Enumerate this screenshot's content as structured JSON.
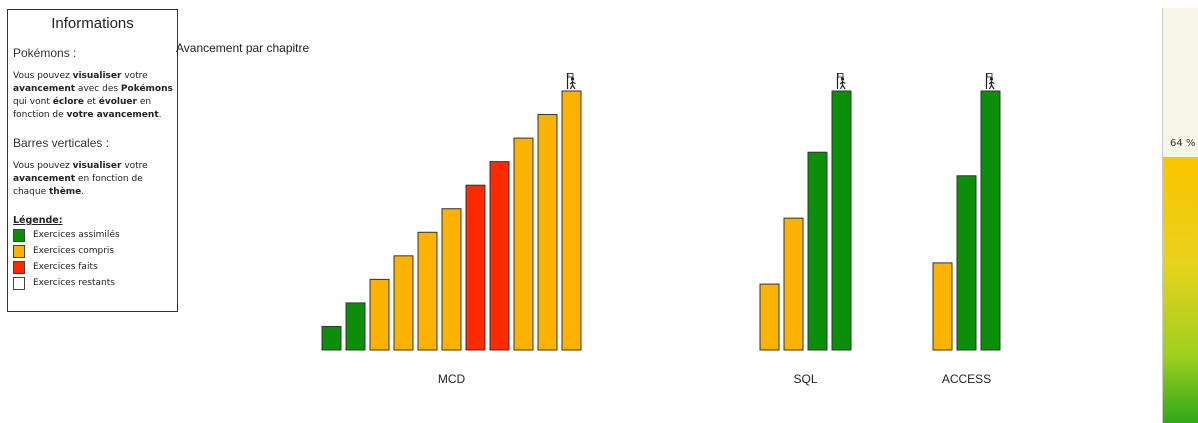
{
  "info": {
    "title": "Informations",
    "pokemon_heading": "Pokémons :",
    "pokemon_text": [
      {
        "t": "Vous pouvez ",
        "b": false
      },
      {
        "t": "visualiser",
        "b": true
      },
      {
        "t": " votre ",
        "b": false
      },
      {
        "t": "avancement",
        "b": true
      },
      {
        "t": " avec des ",
        "b": false
      },
      {
        "t": "Pokémons",
        "b": true
      },
      {
        "t": " qui vont ",
        "b": false
      },
      {
        "t": "éclore",
        "b": true
      },
      {
        "t": " et ",
        "b": false
      },
      {
        "t": "évoluer",
        "b": true
      },
      {
        "t": " en fonction de ",
        "b": false
      },
      {
        "t": "votre avancement",
        "b": true
      },
      {
        "t": ".",
        "b": false
      }
    ],
    "bars_heading": "Barres verticales :",
    "bars_text": [
      {
        "t": "Vous pouvez ",
        "b": false
      },
      {
        "t": "visualiser",
        "b": true
      },
      {
        "t": " votre ",
        "b": false
      },
      {
        "t": "avancement",
        "b": true
      },
      {
        "t": " en fonction de chaque ",
        "b": false
      },
      {
        "t": "thème",
        "b": true
      },
      {
        "t": ".",
        "b": false
      }
    ],
    "legend_title": "Légende:",
    "legend": [
      {
        "label": "Exercices assimilés",
        "color": "#0b8f0b"
      },
      {
        "label": "Exercices compris",
        "color": "#fcb200"
      },
      {
        "label": "Exercices faits",
        "color": "#ff2a00"
      },
      {
        "label": "Exercices restants",
        "color": "#ffffff"
      }
    ]
  },
  "chart_data": {
    "type": "bar",
    "title": "Avancement par chapitre",
    "colors": {
      "assimiles": "#0b8f0b",
      "compris": "#fcb200",
      "faits": "#ff2a00",
      "restants": "#ffffff"
    },
    "groups": [
      {
        "label": "MCD",
        "bars": [
          {
            "value": 1,
            "status": "assimiles"
          },
          {
            "value": 2,
            "status": "assimiles"
          },
          {
            "value": 3,
            "status": "compris"
          },
          {
            "value": 4,
            "status": "compris"
          },
          {
            "value": 5,
            "status": "compris"
          },
          {
            "value": 6,
            "status": "compris"
          },
          {
            "value": 7,
            "status": "faits"
          },
          {
            "value": 8,
            "status": "faits"
          },
          {
            "value": 9,
            "status": "compris"
          },
          {
            "value": 10,
            "status": "compris"
          },
          {
            "value": 11,
            "status": "compris"
          }
        ]
      },
      {
        "label": "SQL",
        "bars": [
          {
            "value": 2.8,
            "status": "compris"
          },
          {
            "value": 5.6,
            "status": "compris"
          },
          {
            "value": 8.4,
            "status": "assimiles"
          },
          {
            "value": 11,
            "status": "assimiles"
          }
        ]
      },
      {
        "label": "ACCESS",
        "bars": [
          {
            "value": 3.7,
            "status": "compris"
          },
          {
            "value": 7.4,
            "status": "assimiles"
          },
          {
            "value": 11,
            "status": "assimiles"
          }
        ]
      }
    ],
    "ylim": [
      0,
      11
    ],
    "grid": false
  },
  "progress": {
    "percent_label": "64 %",
    "value": 64
  }
}
